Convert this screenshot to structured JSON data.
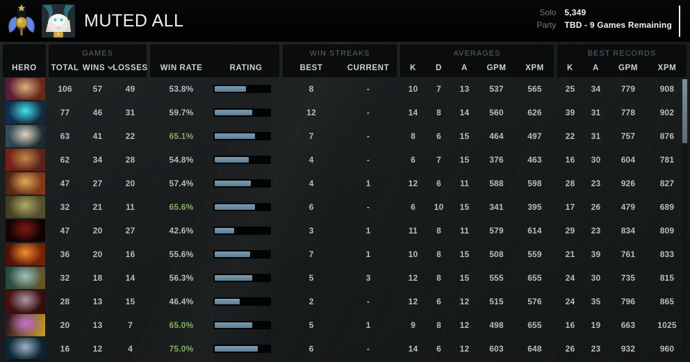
{
  "header": {
    "player_name": "MUTED ALL",
    "solo_label": "Solo",
    "solo_value": "5,349",
    "party_label": "Party",
    "party_value": "TBD - 9 Games Remaining"
  },
  "table": {
    "groups": {
      "games": "GAMES",
      "win_streaks": "WIN STREAKS",
      "averages": "AVERAGES",
      "best_records": "BEST RECORDS"
    },
    "columns": {
      "hero": "HERO",
      "total": "TOTAL",
      "wins": "WINS",
      "losses": "LOSSES",
      "win_rate": "WIN RATE",
      "rating": "RATING",
      "best": "BEST",
      "current": "CURRENT",
      "k": "K",
      "d": "D",
      "a": "A",
      "gpm": "GPM",
      "xpm": "XPM"
    },
    "rows": [
      {
        "total": "106",
        "wins": "57",
        "losses": "49",
        "win_rate": "53.8%",
        "win_rate_green": false,
        "rating_fill": 57,
        "streak_best": "8",
        "streak_current": "-",
        "avg_k": "10",
        "avg_d": "7",
        "avg_a": "13",
        "avg_gpm": "537",
        "avg_xpm": "565",
        "rec_k": "25",
        "rec_a": "34",
        "rec_gpm": "779",
        "rec_xpm": "908",
        "portrait_colors": [
          "#571a3d",
          "#d9b37a",
          "#6b2a10"
        ]
      },
      {
        "total": "77",
        "wins": "46",
        "losses": "31",
        "win_rate": "59.7%",
        "win_rate_green": false,
        "rating_fill": 68,
        "streak_best": "12",
        "streak_current": "-",
        "avg_k": "14",
        "avg_d": "8",
        "avg_a": "14",
        "avg_gpm": "560",
        "avg_xpm": "626",
        "rec_k": "39",
        "rec_a": "31",
        "rec_gpm": "778",
        "rec_xpm": "902",
        "portrait_colors": [
          "#0d2f52",
          "#45e0ee",
          "#15293b"
        ]
      },
      {
        "total": "63",
        "wins": "41",
        "losses": "22",
        "win_rate": "65.1%",
        "win_rate_green": true,
        "rating_fill": 74,
        "streak_best": "7",
        "streak_current": "-",
        "avg_k": "8",
        "avg_d": "6",
        "avg_a": "15",
        "avg_gpm": "464",
        "avg_xpm": "497",
        "rec_k": "22",
        "rec_a": "31",
        "rec_gpm": "757",
        "rec_xpm": "876",
        "portrait_colors": [
          "#35505c",
          "#ded3c2",
          "#19252c"
        ]
      },
      {
        "total": "62",
        "wins": "34",
        "losses": "28",
        "win_rate": "54.8%",
        "win_rate_green": false,
        "rating_fill": 62,
        "streak_best": "4",
        "streak_current": "-",
        "avg_k": "6",
        "avg_d": "7",
        "avg_a": "15",
        "avg_gpm": "376",
        "avg_xpm": "463",
        "rec_k": "16",
        "rec_a": "30",
        "rec_gpm": "604",
        "rec_xpm": "781",
        "portrait_colors": [
          "#7a2017",
          "#c08a45",
          "#55201a"
        ]
      },
      {
        "total": "47",
        "wins": "27",
        "losses": "20",
        "win_rate": "57.4%",
        "win_rate_green": false,
        "rating_fill": 66,
        "streak_best": "4",
        "streak_current": "1",
        "avg_k": "12",
        "avg_d": "6",
        "avg_a": "11",
        "avg_gpm": "588",
        "avg_xpm": "598",
        "rec_k": "28",
        "rec_a": "23",
        "rec_gpm": "926",
        "rec_xpm": "827",
        "portrait_colors": [
          "#4a2410",
          "#e0aa5e",
          "#8a3a16"
        ]
      },
      {
        "total": "32",
        "wins": "21",
        "losses": "11",
        "win_rate": "65.6%",
        "win_rate_green": true,
        "rating_fill": 74,
        "streak_best": "6",
        "streak_current": "-",
        "avg_k": "6",
        "avg_d": "10",
        "avg_a": "15",
        "avg_gpm": "341",
        "avg_xpm": "395",
        "rec_k": "17",
        "rec_a": "26",
        "rec_gpm": "479",
        "rec_xpm": "689",
        "portrait_colors": [
          "#3f3d20",
          "#b2ac66",
          "#55512e"
        ]
      },
      {
        "total": "47",
        "wins": "20",
        "losses": "27",
        "win_rate": "42.6%",
        "win_rate_green": false,
        "rating_fill": 35,
        "streak_best": "3",
        "streak_current": "1",
        "avg_k": "11",
        "avg_d": "8",
        "avg_a": "11",
        "avg_gpm": "579",
        "avg_xpm": "614",
        "rec_k": "29",
        "rec_a": "23",
        "rec_gpm": "834",
        "rec_xpm": "809",
        "portrait_colors": [
          "#160405",
          "#7e1810",
          "#0c0304"
        ]
      },
      {
        "total": "36",
        "wins": "20",
        "losses": "16",
        "win_rate": "55.6%",
        "win_rate_green": false,
        "rating_fill": 64,
        "streak_best": "7",
        "streak_current": "1",
        "avg_k": "10",
        "avg_d": "8",
        "avg_a": "15",
        "avg_gpm": "508",
        "avg_xpm": "559",
        "rec_k": "21",
        "rec_a": "39",
        "rec_gpm": "761",
        "rec_xpm": "833",
        "portrait_colors": [
          "#4a0f05",
          "#f09030",
          "#7a2208"
        ]
      },
      {
        "total": "32",
        "wins": "18",
        "losses": "14",
        "win_rate": "56.3%",
        "win_rate_green": false,
        "rating_fill": 68,
        "streak_best": "5",
        "streak_current": "3",
        "avg_k": "12",
        "avg_d": "8",
        "avg_a": "15",
        "avg_gpm": "555",
        "avg_xpm": "655",
        "rec_k": "24",
        "rec_a": "30",
        "rec_gpm": "735",
        "rec_xpm": "815",
        "portrait_colors": [
          "#1d4a45",
          "#9cc4c0",
          "#6e5526"
        ]
      },
      {
        "total": "28",
        "wins": "13",
        "losses": "15",
        "win_rate": "46.4%",
        "win_rate_green": false,
        "rating_fill": 45,
        "streak_best": "2",
        "streak_current": "-",
        "avg_k": "12",
        "avg_d": "6",
        "avg_a": "12",
        "avg_gpm": "515",
        "avg_xpm": "576",
        "rec_k": "24",
        "rec_a": "35",
        "rec_gpm": "796",
        "rec_xpm": "865",
        "portrait_colors": [
          "#4d0e0e",
          "#a89aa4",
          "#330b0b"
        ]
      },
      {
        "total": "20",
        "wins": "13",
        "losses": "7",
        "win_rate": "65.0%",
        "win_rate_green": true,
        "rating_fill": 68,
        "streak_best": "5",
        "streak_current": "1",
        "avg_k": "9",
        "avg_d": "8",
        "avg_a": "12",
        "avg_gpm": "498",
        "avg_xpm": "655",
        "rec_k": "16",
        "rec_a": "19",
        "rec_gpm": "663",
        "rec_xpm": "1025",
        "portrait_colors": [
          "#2a0e1e",
          "#c070d8",
          "#caa02a"
        ]
      },
      {
        "total": "16",
        "wins": "12",
        "losses": "4",
        "win_rate": "75.0%",
        "win_rate_green": true,
        "rating_fill": 78,
        "streak_best": "6",
        "streak_current": "-",
        "avg_k": "14",
        "avg_d": "6",
        "avg_a": "12",
        "avg_gpm": "603",
        "avg_xpm": "648",
        "rec_k": "26",
        "rec_a": "23",
        "rec_gpm": "932",
        "rec_xpm": "960",
        "portrait_colors": [
          "#0b2836",
          "#9cb4c6",
          "#0e2230"
        ]
      }
    ]
  },
  "colors": {
    "win_rate_green": "#85ab66",
    "rating_bar_top": "#7e9cb0",
    "rating_bar_bottom": "#5d7d93",
    "medal_wing_blue": "#5577d8",
    "medal_gold": "#c9a43e",
    "value_text": "#babdbe"
  }
}
